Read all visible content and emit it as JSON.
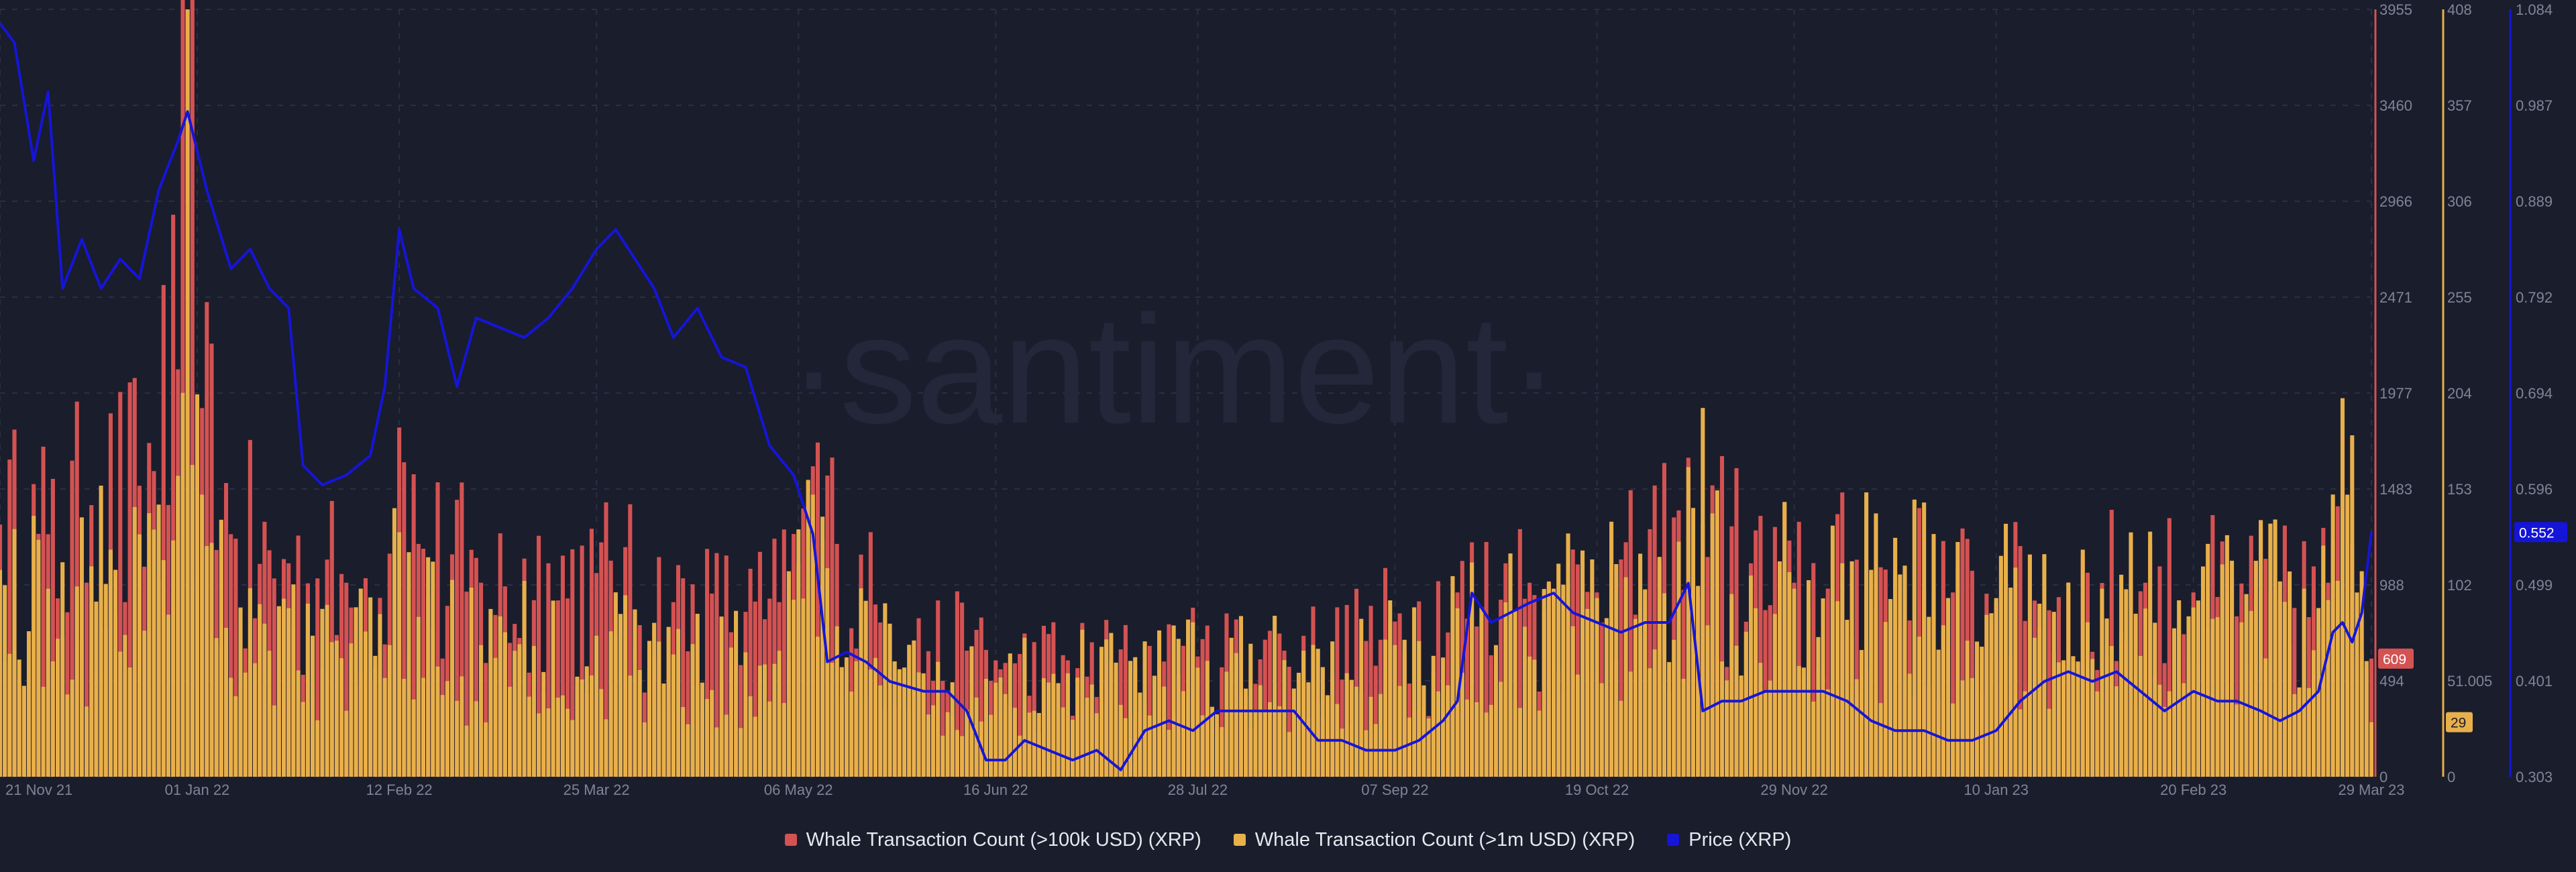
{
  "watermark": "·santiment·",
  "colors": {
    "background": "#1a1d2c",
    "whale_100k": "#d45252",
    "whale_1m": "#e8b04a",
    "price": "#1515d8",
    "grid": "#2a2f42",
    "tick_text": "#7f8596"
  },
  "chart_data": {
    "type": "bar",
    "grid": true,
    "legend_position": "bottom-center",
    "x_tick_labels": [
      "21 Nov 21",
      "01 Jan 22",
      "12 Feb 22",
      "25 Mar 22",
      "06 May 22",
      "16 Jun 22",
      "28 Jul 22",
      "07 Sep 22",
      "19 Oct 22",
      "29 Nov 22",
      "10 Jan 23",
      "20 Feb 23",
      "29 Mar 23"
    ],
    "axes": {
      "whale_100k": {
        "ticks": [
          "3955",
          "3460",
          "2966",
          "2471",
          "1977",
          "1483",
          "988",
          "494",
          "0"
        ],
        "ylim": [
          0,
          3955
        ],
        "badge": "609"
      },
      "whale_1m": {
        "ticks": [
          "408",
          "357",
          "306",
          "255",
          "204",
          "153",
          "102",
          "51.005",
          "0"
        ],
        "ylim": [
          0,
          408
        ],
        "badge": "29"
      },
      "price": {
        "ticks": [
          "1.084",
          "0.987",
          "0.889",
          "0.792",
          "0.694",
          "0.596",
          "0.499",
          "0.401",
          "0.303"
        ],
        "ylim": [
          0.303,
          1.084
        ],
        "badge": "0.552"
      }
    },
    "x_range": [
      "21 Nov 21",
      "29 Mar 23"
    ],
    "series": [
      {
        "name": "Whale Transaction Count (>100k USD) (XRP)",
        "type": "bar",
        "axis": "whale_100k",
        "anchors": [
          [
            "21 Nov 21",
            1300
          ],
          [
            "01 Dec 21",
            1250
          ],
          [
            "10 Dec 21",
            1400
          ],
          [
            "20 Dec 21",
            1500
          ],
          [
            "28 Dec 21",
            2100
          ],
          [
            "30 Dec 21",
            3955
          ],
          [
            "02 Jan 22",
            1900
          ],
          [
            "08 Jan 22",
            1250
          ],
          [
            "20 Jan 22",
            1100
          ],
          [
            "01 Feb 22",
            1000
          ],
          [
            "10 Feb 22",
            1150
          ],
          [
            "12 Feb 22",
            1800
          ],
          [
            "16 Feb 22",
            1200
          ],
          [
            "01 Mar 22",
            1000
          ],
          [
            "15 Mar 22",
            1100
          ],
          [
            "25 Mar 22",
            1050
          ],
          [
            "10 Apr 22",
            900
          ],
          [
            "25 Apr 22",
            850
          ],
          [
            "02 May 22",
            900
          ],
          [
            "06 May 22",
            1100
          ],
          [
            "09 May 22",
            1600
          ],
          [
            "14 May 22",
            1200
          ],
          [
            "25 May 22",
            750
          ],
          [
            "10 Jun 22",
            650
          ],
          [
            "16 Jun 22",
            600
          ],
          [
            "01 Jul 22",
            600
          ],
          [
            "20 Jul 22",
            580
          ],
          [
            "28 Jul 22",
            620
          ],
          [
            "15 Aug 22",
            650
          ],
          [
            "01 Sep 22",
            700
          ],
          [
            "07 Sep 22",
            800
          ],
          [
            "20 Sep 22",
            950
          ],
          [
            "05 Oct 22",
            1000
          ],
          [
            "19 Oct 22",
            950
          ],
          [
            "01 Nov 22",
            1100
          ],
          [
            "10 Nov 22",
            1300
          ],
          [
            "20 Nov 22",
            1100
          ],
          [
            "29 Nov 22",
            1000
          ],
          [
            "15 Dec 22",
            1050
          ],
          [
            "01 Jan 23",
            950
          ],
          [
            "10 Jan 23",
            900
          ],
          [
            "25 Jan 23",
            950
          ],
          [
            "10 Feb 23",
            1000
          ],
          [
            "20 Feb 23",
            950
          ],
          [
            "10 Mar 23",
            900
          ],
          [
            "20 Mar 23",
            1000
          ],
          [
            "25 Mar 23",
            1200
          ],
          [
            "29 Mar 23",
            609
          ]
        ]
      },
      {
        "name": "Whale Transaction Count (>1m USD) (XRP)",
        "type": "bar",
        "axis": "whale_1m",
        "anchors": [
          [
            "21 Nov 21",
            110
          ],
          [
            "01 Dec 21",
            100
          ],
          [
            "15 Dec 21",
            110
          ],
          [
            "28 Dec 21",
            160
          ],
          [
            "30 Dec 21",
            408
          ],
          [
            "02 Jan 22",
            150
          ],
          [
            "10 Jan 22",
            90
          ],
          [
            "25 Jan 22",
            75
          ],
          [
            "10 Feb 22",
            70
          ],
          [
            "12 Feb 22",
            130
          ],
          [
            "16 Feb 22",
            85
          ],
          [
            "01 Mar 22",
            70
          ],
          [
            "25 Mar 22",
            75
          ],
          [
            "10 Apr 22",
            65
          ],
          [
            "01 May 22",
            60
          ],
          [
            "09 May 22",
            150
          ],
          [
            "14 May 22",
            80
          ],
          [
            "01 Jun 22",
            55
          ],
          [
            "16 Jun 22",
            50
          ],
          [
            "01 Jul 22",
            55
          ],
          [
            "28 Jul 22",
            58
          ],
          [
            "15 Aug 22",
            62
          ],
          [
            "07 Sep 22",
            70
          ],
          [
            "25 Sep 22",
            90
          ],
          [
            "10 Oct 22",
            100
          ],
          [
            "19 Oct 22",
            95
          ],
          [
            "05 Nov 22",
            125
          ],
          [
            "12 Nov 22",
            140
          ],
          [
            "29 Nov 22",
            100
          ],
          [
            "15 Dec 22",
            110
          ],
          [
            "10 Jan 23",
            95
          ],
          [
            "01 Feb 23",
            100
          ],
          [
            "20 Feb 23",
            90
          ],
          [
            "15 Mar 23",
            100
          ],
          [
            "24 Mar 23",
            150
          ],
          [
            "29 Mar 23",
            29
          ]
        ]
      },
      {
        "name": "Price (XRP)",
        "type": "line",
        "axis": "price",
        "points": [
          [
            "21 Nov 21",
            1.07
          ],
          [
            "24 Nov 21",
            1.05
          ],
          [
            "28 Nov 21",
            0.93
          ],
          [
            "01 Dec 21",
            1.0
          ],
          [
            "04 Dec 21",
            0.8
          ],
          [
            "08 Dec 21",
            0.85
          ],
          [
            "12 Dec 21",
            0.8
          ],
          [
            "16 Dec 21",
            0.83
          ],
          [
            "20 Dec 21",
            0.81
          ],
          [
            "24 Dec 21",
            0.9
          ],
          [
            "28 Dec 21",
            0.95
          ],
          [
            "30 Dec 21",
            0.98
          ],
          [
            "03 Jan 22",
            0.9
          ],
          [
            "08 Jan 22",
            0.82
          ],
          [
            "12 Jan 22",
            0.84
          ],
          [
            "16 Jan 22",
            0.8
          ],
          [
            "20 Jan 22",
            0.78
          ],
          [
            "23 Jan 22",
            0.62
          ],
          [
            "27 Jan 22",
            0.6
          ],
          [
            "01 Feb 22",
            0.61
          ],
          [
            "06 Feb 22",
            0.63
          ],
          [
            "09 Feb 22",
            0.7
          ],
          [
            "12 Feb 22",
            0.86
          ],
          [
            "15 Feb 22",
            0.8
          ],
          [
            "20 Feb 22",
            0.78
          ],
          [
            "24 Feb 22",
            0.7
          ],
          [
            "28 Feb 22",
            0.77
          ],
          [
            "05 Mar 22",
            0.76
          ],
          [
            "10 Mar 22",
            0.75
          ],
          [
            "15 Mar 22",
            0.77
          ],
          [
            "20 Mar 22",
            0.8
          ],
          [
            "25 Mar 22",
            0.84
          ],
          [
            "29 Mar 22",
            0.86
          ],
          [
            "02 Apr 22",
            0.83
          ],
          [
            "06 Apr 22",
            0.8
          ],
          [
            "10 Apr 22",
            0.75
          ],
          [
            "15 Apr 22",
            0.78
          ],
          [
            "20 Apr 22",
            0.73
          ],
          [
            "25 Apr 22",
            0.72
          ],
          [
            "30 Apr 22",
            0.64
          ],
          [
            "05 May 22",
            0.61
          ],
          [
            "09 May 22",
            0.55
          ],
          [
            "12 May 22",
            0.42
          ],
          [
            "16 May 22",
            0.43
          ],
          [
            "20 May 22",
            0.42
          ],
          [
            "25 May 22",
            0.4
          ],
          [
            "01 Jun 22",
            0.39
          ],
          [
            "06 Jun 22",
            0.39
          ],
          [
            "10 Jun 22",
            0.37
          ],
          [
            "14 Jun 22",
            0.32
          ],
          [
            "18 Jun 22",
            0.32
          ],
          [
            "22 Jun 22",
            0.34
          ],
          [
            "27 Jun 22",
            0.33
          ],
          [
            "02 Jul 22",
            0.32
          ],
          [
            "07 Jul 22",
            0.33
          ],
          [
            "12 Jul 22",
            0.31
          ],
          [
            "17 Jul 22",
            0.35
          ],
          [
            "22 Jul 22",
            0.36
          ],
          [
            "27 Jul 22",
            0.35
          ],
          [
            "01 Aug 22",
            0.37
          ],
          [
            "07 Aug 22",
            0.37
          ],
          [
            "12 Aug 22",
            0.37
          ],
          [
            "17 Aug 22",
            0.37
          ],
          [
            "22 Aug 22",
            0.34
          ],
          [
            "27 Aug 22",
            0.34
          ],
          [
            "01 Sep 22",
            0.33
          ],
          [
            "07 Sep 22",
            0.33
          ],
          [
            "12 Sep 22",
            0.34
          ],
          [
            "17 Sep 22",
            0.36
          ],
          [
            "20 Sep 22",
            0.38
          ],
          [
            "23 Sep 22",
            0.49
          ],
          [
            "27 Sep 22",
            0.46
          ],
          [
            "01 Oct 22",
            0.47
          ],
          [
            "05 Oct 22",
            0.48
          ],
          [
            "10 Oct 22",
            0.49
          ],
          [
            "14 Oct 22",
            0.47
          ],
          [
            "19 Oct 22",
            0.46
          ],
          [
            "24 Oct 22",
            0.45
          ],
          [
            "29 Oct 22",
            0.46
          ],
          [
            "03 Nov 22",
            0.46
          ],
          [
            "07 Nov 22",
            0.5
          ],
          [
            "10 Nov 22",
            0.37
          ],
          [
            "14 Nov 22",
            0.38
          ],
          [
            "18 Nov 22",
            0.38
          ],
          [
            "23 Nov 22",
            0.39
          ],
          [
            "29 Nov 22",
            0.39
          ],
          [
            "05 Dec 22",
            0.39
          ],
          [
            "10 Dec 22",
            0.38
          ],
          [
            "15 Dec 22",
            0.36
          ],
          [
            "20 Dec 22",
            0.35
          ],
          [
            "26 Dec 22",
            0.35
          ],
          [
            "31 Dec 22",
            0.34
          ],
          [
            "05 Jan 23",
            0.34
          ],
          [
            "10 Jan 23",
            0.35
          ],
          [
            "15 Jan 23",
            0.38
          ],
          [
            "20 Jan 23",
            0.4
          ],
          [
            "25 Jan 23",
            0.41
          ],
          [
            "30 Jan 23",
            0.4
          ],
          [
            "04 Feb 23",
            0.41
          ],
          [
            "09 Feb 23",
            0.39
          ],
          [
            "14 Feb 23",
            0.37
          ],
          [
            "20 Feb 23",
            0.39
          ],
          [
            "25 Feb 23",
            0.38
          ],
          [
            "01 Mar 23",
            0.38
          ],
          [
            "06 Mar 23",
            0.37
          ],
          [
            "10 Mar 23",
            0.36
          ],
          [
            "14 Mar 23",
            0.37
          ],
          [
            "18 Mar 23",
            0.39
          ],
          [
            "21 Mar 23",
            0.45
          ],
          [
            "23 Mar 23",
            0.46
          ],
          [
            "25 Mar 23",
            0.44
          ],
          [
            "27 Mar 23",
            0.47
          ],
          [
            "29 Mar 23",
            0.552
          ]
        ]
      }
    ]
  },
  "legend": [
    {
      "label": "Whale Transaction Count (>100k USD) (XRP)",
      "color": "#d45252"
    },
    {
      "label": "Whale Transaction Count (>1m USD) (XRP)",
      "color": "#e8b04a"
    },
    {
      "label": "Price (XRP)",
      "color": "#1515d8"
    }
  ]
}
